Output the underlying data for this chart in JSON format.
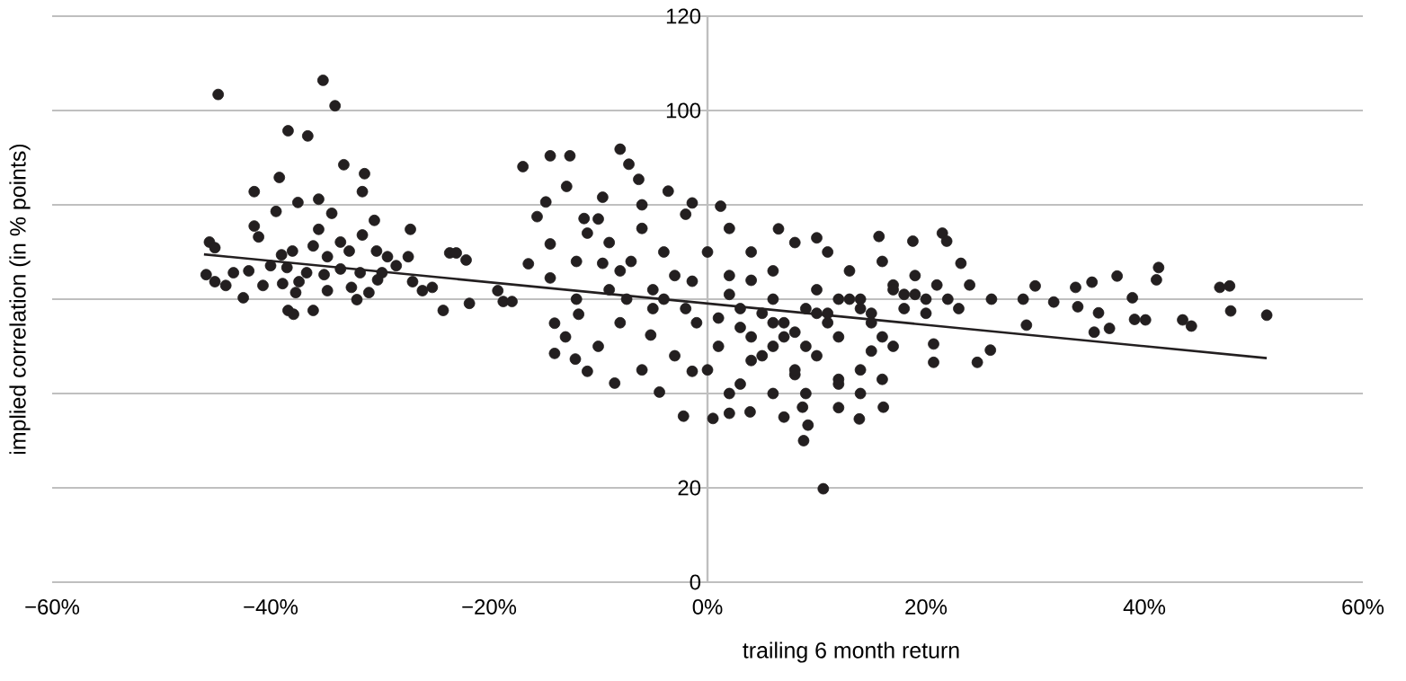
{
  "chart_data": {
    "type": "scatter",
    "xlabel": "trailing 6 month return",
    "ylabel": "implied correlation (in % points)",
    "xlim": [
      -60,
      60
    ],
    "ylim": [
      0,
      120
    ],
    "xticks": [
      {
        "value": -60,
        "label": "−60%"
      },
      {
        "value": -40,
        "label": "−40%"
      },
      {
        "value": -20,
        "label": "−20%"
      },
      {
        "value": 0,
        "label": "0%"
      },
      {
        "value": 20,
        "label": "20%"
      },
      {
        "value": 40,
        "label": "40%"
      },
      {
        "value": 60,
        "label": "60%"
      }
    ],
    "yticks": [
      0,
      20,
      {
        "value": 40,
        "label": null
      },
      {
        "value": 60,
        "label": null
      },
      {
        "value": 80,
        "label": null
      },
      100,
      120
    ],
    "grid": "y",
    "marker": "circle",
    "series": [
      {
        "color": "#231f20",
        "x": [
          1,
          3,
          5,
          7,
          9,
          11,
          13,
          15,
          17,
          19,
          21,
          23,
          2,
          4,
          6,
          8,
          10,
          12,
          14,
          16,
          18,
          20,
          -1,
          -3,
          -5,
          -7,
          -9,
          -11,
          -13,
          0,
          2,
          4,
          6,
          8,
          10,
          12,
          14,
          16,
          -2,
          -4,
          -6,
          -8,
          -10,
          -44.8,
          -35.2,
          -34.1,
          -38.4,
          -36.6,
          -33.3,
          -31.4,
          -39.2,
          -41.5,
          -31.6,
          -37.5,
          -35.6,
          -39.5,
          -34.4,
          -41.5,
          -30.5,
          -35.6,
          -27.2,
          -45.6,
          -45.1,
          -41.1,
          -33.6,
          -31.6,
          -39.0,
          -38.0,
          -36.1,
          -34.8,
          -32.8,
          -30.3,
          -29.3,
          -27.4,
          -45.9,
          -43.4,
          -42.0,
          -40.0,
          -38.5,
          -36.7,
          -35.1,
          -33.6,
          -31.8,
          -29.8,
          -28.5,
          -45.1,
          -44.1,
          -40.7,
          -38.9,
          -37.4,
          -34.8,
          -32.6,
          -30.2,
          -27.0,
          -26.1,
          -25.2,
          -37.7,
          -42.5,
          -32.1,
          -31.0,
          -38.4,
          -37.9,
          -36.1,
          -24.2,
          -23.6,
          -23.0,
          -22.1,
          -21.8,
          -19.2,
          -18.7,
          -17.9,
          -16.9,
          -16.4,
          -14.4,
          -12.6,
          10.6,
          8.8,
          20.7,
          24.7,
          25.9,
          41.3,
          41.1,
          37.5,
          35.2,
          33.7,
          46.9,
          47.8,
          47.9,
          51.2,
          43.5,
          44.3,
          40.1,
          38.9,
          39.1,
          35.4,
          36.8,
          33.9,
          35.8,
          29.2,
          31.7,
          30.0,
          28.9,
          21.5,
          21.9,
          18.8,
          23.2,
          15.7,
          6.5,
          1.2,
          8.7,
          9.2,
          13.9,
          16.1,
          3.9,
          2.0,
          0.5,
          20.7,
          -2.2,
          -8.0,
          -7.2,
          -12.9,
          -14.8,
          -15.6,
          -14.4,
          -14.4,
          -14.0,
          -14.0,
          -12.1,
          -11.0,
          -8.5,
          -4.4,
          -11.8,
          -11.3,
          -9.6,
          -6.3,
          -9.6,
          -7.4,
          -5.2,
          -1.4,
          -1.4,
          -3.6,
          -1.4,
          0,
          2,
          3,
          4,
          5,
          6,
          7,
          8,
          9,
          10,
          11,
          12,
          13,
          14,
          15,
          16,
          17,
          18,
          19,
          20,
          1,
          3,
          6,
          9,
          12,
          14,
          4,
          8,
          11,
          6,
          -2,
          -4,
          -6,
          -8,
          -10,
          -12,
          -3,
          -6,
          -9,
          -12,
          -5,
          2,
          10,
          22,
          24,
          26,
          12,
          15,
          17,
          7
        ],
        "values": [
          56,
          54,
          57,
          52,
          58,
          55,
          60,
          57,
          63,
          61,
          63,
          58,
          61,
          64,
          55,
          53,
          57,
          60,
          58,
          52,
          61,
          57,
          55,
          65,
          58,
          68,
          62,
          74,
          52,
          45,
          40,
          47,
          50,
          44,
          48,
          42,
          40,
          43,
          78,
          60,
          80,
          66,
          77,
          103.4,
          106.4,
          101.0,
          95.7,
          94.6,
          88.5,
          86.6,
          85.8,
          82.8,
          82.8,
          80.5,
          81.2,
          78.6,
          78.2,
          75.5,
          76.7,
          74.8,
          74.8,
          72.1,
          70.9,
          73.2,
          72.1,
          73.6,
          69.4,
          70.2,
          71.3,
          69.0,
          70.2,
          70.2,
          69.0,
          69.0,
          65.2,
          65.6,
          66.0,
          67.1,
          66.7,
          65.6,
          65.2,
          66.4,
          65.6,
          65.6,
          67.1,
          63.7,
          62.9,
          62.9,
          63.3,
          63.7,
          61.8,
          62.5,
          64.1,
          63.7,
          61.8,
          62.5,
          61.4,
          60.3,
          59.9,
          61.4,
          57.6,
          56.8,
          57.6,
          57.6,
          69.8,
          69.8,
          68.3,
          59.1,
          61.8,
          59.5,
          59.5,
          88.1,
          67.5,
          90.4,
          90.4,
          19.8,
          30.0,
          46.6,
          46.6,
          49.2,
          66.7,
          64.1,
          64.9,
          63.6,
          62.5,
          62.5,
          62.8,
          57.5,
          56.6,
          55.6,
          54.3,
          55.6,
          60.3,
          55.7,
          53.0,
          53.8,
          58.4,
          57.1,
          54.5,
          59.4,
          62.8,
          60.0,
          74.0,
          72.3,
          72.3,
          67.6,
          73.3,
          74.9,
          79.7,
          37.1,
          33.3,
          34.6,
          37.1,
          36.1,
          35.8,
          34.7,
          50.5,
          35.2,
          91.8,
          88.6,
          83.9,
          80.6,
          77.5,
          71.7,
          64.5,
          54.9,
          48.5,
          47.3,
          44.7,
          42.2,
          40.3,
          56.8,
          77.1,
          81.6,
          85.4,
          67.6,
          60.0,
          52.4,
          44.7,
          63.8,
          82.9,
          80.4,
          70,
          65,
          58,
          52,
          48,
          60,
          55,
          45,
          50,
          62,
          57,
          52,
          66,
          60,
          55,
          68,
          62,
          58,
          65,
          60,
          50,
          42,
          40,
          40,
          37,
          45,
          70,
          72,
          70,
          66,
          58,
          70,
          75,
          55,
          50,
          60,
          48,
          45,
          72,
          68,
          62,
          75,
          73,
          60,
          63,
          60,
          43,
          49,
          50,
          35
        ]
      },
      {
        "type": "line",
        "marker": "none",
        "color": "#231f20",
        "x": [
          -46.1,
          51.2
        ],
        "values": [
          69.5,
          47.5
        ]
      }
    ]
  }
}
